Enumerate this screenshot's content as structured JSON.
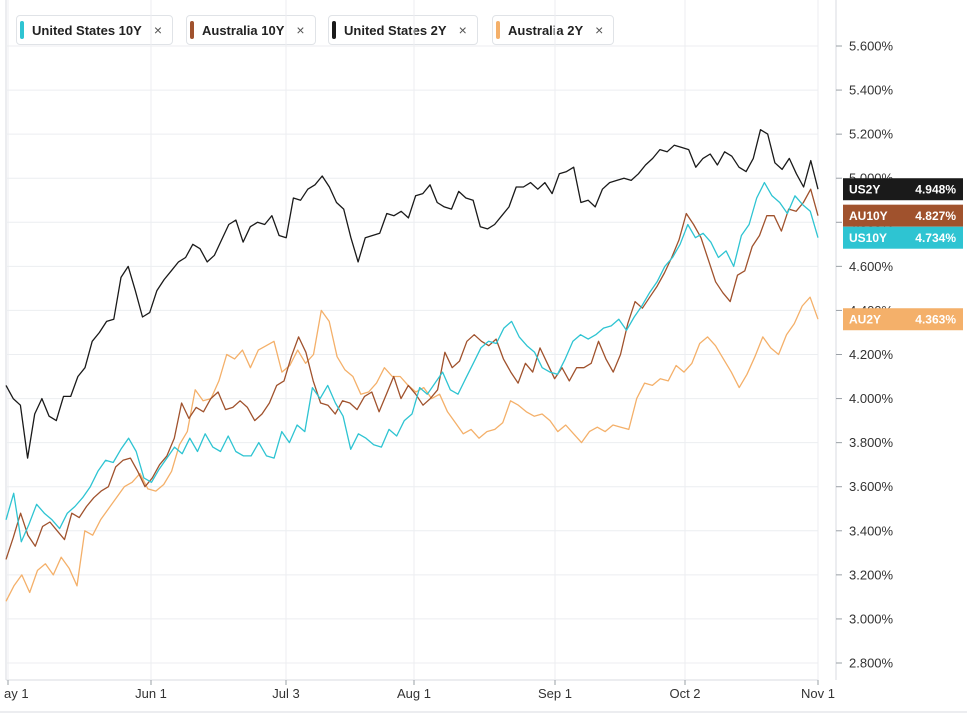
{
  "legend": [
    {
      "label": "United States 10Y",
      "color": "#2ec4d2",
      "close": "×"
    },
    {
      "label": "Australia 10Y",
      "color": "#a0522d",
      "close": "×"
    },
    {
      "label": "United States 2Y",
      "color": "#1a1a1a",
      "close": "×"
    },
    {
      "label": "Australia 2Y",
      "color": "#f4b06a",
      "close": "×"
    }
  ],
  "chart_data": {
    "type": "line",
    "x_ticks": [
      "ay 1",
      "Jun 1",
      "Jul 3",
      "Aug 1",
      "Sep 1",
      "Oct 2",
      "Nov 1"
    ],
    "y_ticks": [
      "5.600%",
      "5.400%",
      "5.200%",
      "5.000%",
      "4.800%",
      "4.600%",
      "4.400%",
      "4.200%",
      "4.000%",
      "3.800%",
      "3.600%",
      "3.400%",
      "3.200%",
      "3.000%",
      "2.800%"
    ],
    "ylim": [
      2.75,
      5.75
    ],
    "grid": true,
    "series": [
      {
        "name": "United States 2Y",
        "color": "#1a1a1a",
        "tag": "US2Y",
        "last": "4.948%",
        "values": [
          4.06,
          4.0,
          3.97,
          3.73,
          3.93,
          4.0,
          3.92,
          3.9,
          4.01,
          4.01,
          4.1,
          4.14,
          4.26,
          4.3,
          4.35,
          4.36,
          4.55,
          4.6,
          4.49,
          4.37,
          4.39,
          4.49,
          4.54,
          4.58,
          4.62,
          4.64,
          4.7,
          4.68,
          4.62,
          4.65,
          4.72,
          4.79,
          4.81,
          4.71,
          4.78,
          4.8,
          4.79,
          4.83,
          4.74,
          4.73,
          4.91,
          4.9,
          4.95,
          4.97,
          5.01,
          4.96,
          4.89,
          4.86,
          4.73,
          4.62,
          4.73,
          4.74,
          4.75,
          4.84,
          4.83,
          4.85,
          4.82,
          4.92,
          4.93,
          4.97,
          4.89,
          4.87,
          4.86,
          4.94,
          4.91,
          4.9,
          4.78,
          4.77,
          4.79,
          4.83,
          4.87,
          4.96,
          4.96,
          4.98,
          4.95,
          4.98,
          4.93,
          5.02,
          5.03,
          5.05,
          4.89,
          4.9,
          4.87,
          4.95,
          4.98,
          4.99,
          5.0,
          4.99,
          5.02,
          5.06,
          5.09,
          5.13,
          5.12,
          5.15,
          5.14,
          5.13,
          5.05,
          5.09,
          5.11,
          5.06,
          5.12,
          5.1,
          5.05,
          5.03,
          5.09,
          5.22,
          5.2,
          5.07,
          5.04,
          5.09,
          5.02,
          4.96,
          5.08,
          4.95
        ]
      },
      {
        "name": "Australia 10Y",
        "color": "#a0522d",
        "tag": "AU10Y",
        "last": "4.827%",
        "values": [
          3.27,
          3.37,
          3.48,
          3.38,
          3.33,
          3.42,
          3.44,
          3.4,
          3.36,
          3.48,
          3.46,
          3.51,
          3.55,
          3.58,
          3.6,
          3.69,
          3.72,
          3.73,
          3.67,
          3.6,
          3.64,
          3.7,
          3.74,
          3.82,
          3.98,
          3.91,
          3.96,
          3.94,
          4.0,
          4.03,
          3.95,
          3.96,
          3.99,
          3.96,
          3.9,
          3.93,
          3.98,
          4.06,
          4.08,
          4.19,
          4.28,
          4.21,
          4.08,
          3.98,
          3.97,
          3.93,
          3.99,
          3.98,
          3.95,
          4.01,
          4.03,
          3.94,
          4.02,
          4.1,
          4.0,
          4.06,
          4.02,
          3.97,
          4.0,
          4.04,
          4.21,
          4.14,
          4.17,
          4.26,
          4.29,
          4.26,
          4.24,
          4.27,
          4.18,
          4.12,
          4.07,
          4.16,
          4.12,
          4.23,
          4.16,
          4.09,
          4.14,
          4.08,
          4.14,
          4.14,
          4.16,
          4.26,
          4.18,
          4.12,
          4.2,
          4.34,
          4.44,
          4.41,
          4.46,
          4.51,
          4.57,
          4.64,
          4.72,
          4.84,
          4.79,
          4.73,
          4.63,
          4.53,
          4.48,
          4.44,
          4.56,
          4.58,
          4.69,
          4.74,
          4.83,
          4.83,
          4.76,
          4.86,
          4.85,
          4.89,
          4.95,
          4.83
        ]
      },
      {
        "name": "United States 10Y",
        "color": "#2ec4d2",
        "tag": "US10Y",
        "last": "4.734%",
        "values": [
          3.45,
          3.57,
          3.35,
          3.43,
          3.52,
          3.48,
          3.45,
          3.41,
          3.48,
          3.51,
          3.55,
          3.6,
          3.67,
          3.72,
          3.71,
          3.77,
          3.82,
          3.76,
          3.64,
          3.62,
          3.68,
          3.73,
          3.78,
          3.75,
          3.82,
          3.76,
          3.84,
          3.78,
          3.76,
          3.83,
          3.76,
          3.74,
          3.74,
          3.8,
          3.74,
          3.73,
          3.85,
          3.8,
          3.88,
          3.85,
          4.05,
          4.0,
          4.06,
          3.98,
          3.92,
          3.77,
          3.84,
          3.82,
          3.79,
          3.78,
          3.86,
          3.83,
          3.9,
          3.93,
          4.05,
          4.02,
          4.07,
          4.12,
          4.04,
          4.02,
          4.09,
          4.16,
          4.23,
          4.26,
          4.25,
          4.32,
          4.35,
          4.28,
          4.24,
          4.21,
          4.14,
          4.12,
          4.11,
          4.18,
          4.26,
          4.29,
          4.27,
          4.29,
          4.32,
          4.33,
          4.36,
          4.31,
          4.37,
          4.42,
          4.48,
          4.53,
          4.6,
          4.64,
          4.7,
          4.79,
          4.73,
          4.75,
          4.71,
          4.64,
          4.67,
          4.6,
          4.74,
          4.79,
          4.91,
          4.98,
          4.92,
          4.89,
          4.84,
          4.92,
          4.88,
          4.85,
          4.73
        ]
      },
      {
        "name": "Australia 2Y",
        "color": "#f4b06a",
        "tag": "AU2Y",
        "last": "4.363%",
        "values": [
          3.08,
          3.15,
          3.2,
          3.12,
          3.22,
          3.25,
          3.2,
          3.28,
          3.23,
          3.15,
          3.4,
          3.38,
          3.45,
          3.5,
          3.55,
          3.6,
          3.62,
          3.66,
          3.59,
          3.58,
          3.61,
          3.67,
          3.79,
          3.85,
          4.04,
          3.99,
          4.0,
          4.08,
          4.2,
          4.18,
          4.22,
          4.14,
          4.22,
          4.24,
          4.26,
          4.12,
          4.15,
          4.22,
          4.16,
          4.2,
          4.4,
          4.35,
          4.19,
          4.13,
          4.1,
          4.02,
          4.03,
          4.07,
          4.14,
          4.1,
          4.1,
          4.06,
          4.03,
          4.05,
          4.0,
          4.02,
          3.94,
          3.89,
          3.84,
          3.86,
          3.82,
          3.85,
          3.86,
          3.89,
          3.99,
          3.97,
          3.94,
          3.92,
          3.93,
          3.9,
          3.85,
          3.88,
          3.84,
          3.8,
          3.85,
          3.87,
          3.85,
          3.88,
          3.87,
          3.86,
          4.0,
          4.07,
          4.06,
          4.09,
          4.08,
          4.15,
          4.12,
          4.16,
          4.25,
          4.28,
          4.24,
          4.18,
          4.12,
          4.05,
          4.11,
          4.19,
          4.28,
          4.23,
          4.2,
          4.29,
          4.34,
          4.42,
          4.46,
          4.36
        ]
      }
    ]
  }
}
